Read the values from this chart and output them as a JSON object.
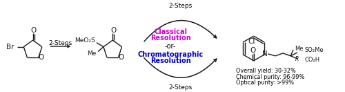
{
  "bg_color": "#ffffff",
  "figsize": [
    5.0,
    1.33
  ],
  "dpi": 100,
  "steps_first": "2-Steps",
  "steps_top": "2-Steps",
  "steps_bottom": "2-Steps",
  "classical_text_1": "Classical",
  "classical_text_2": "Resolution",
  "classical_color": "#cc00cc",
  "or_text": "-or-",
  "chromato_text_1": "Chromatographic",
  "chromato_text_2": "Resolution",
  "chromato_color": "#0000cc",
  "yield_line1": "Overall yield: 30-32%",
  "yield_line2": "Chemical purity: 96-99%",
  "yield_line3": "Optical purity: >99%",
  "bond_color": "#1a1a1a",
  "arrow_color": "#1a1a1a"
}
